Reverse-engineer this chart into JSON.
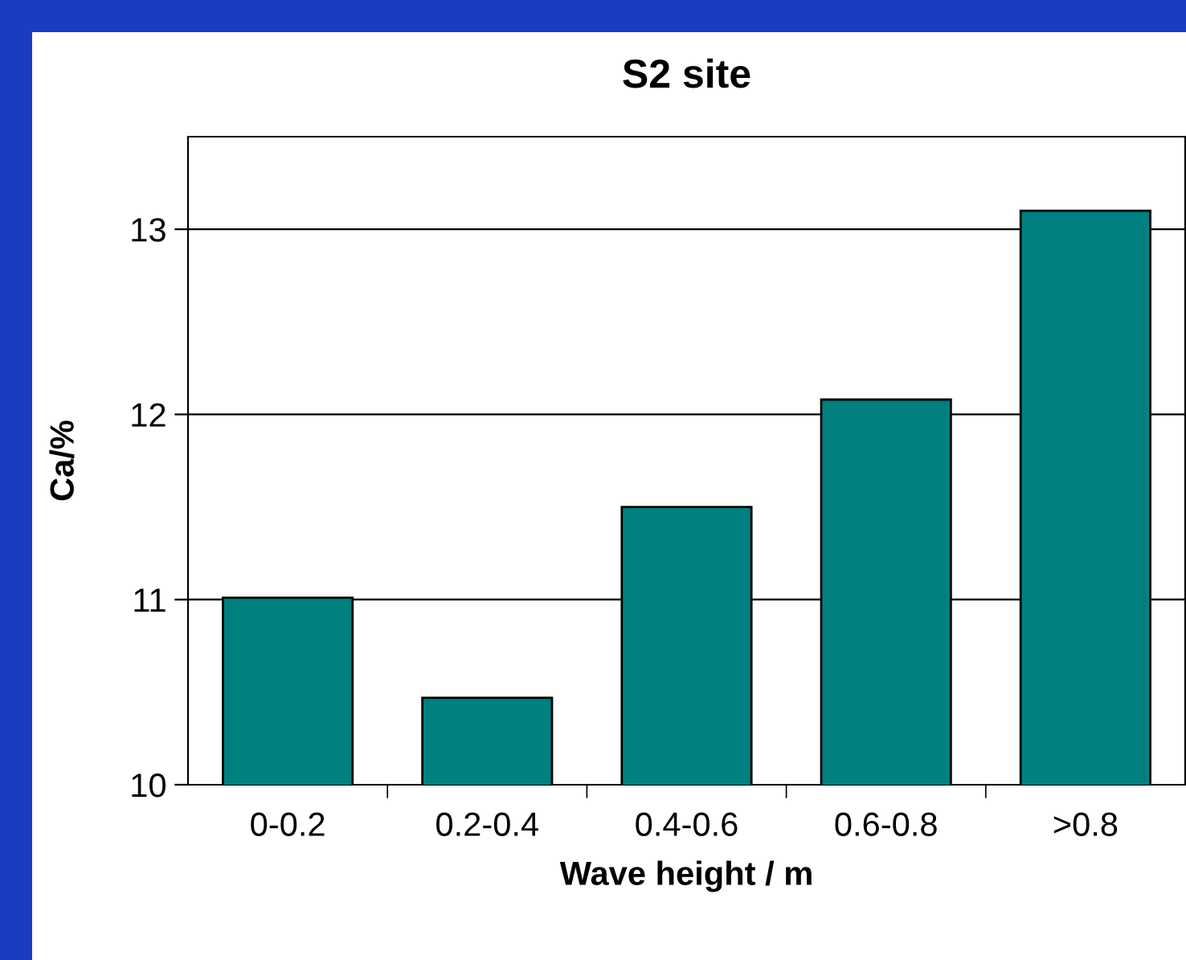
{
  "chart_data": {
    "type": "bar",
    "title": "S2 site",
    "xlabel": "Wave height / m",
    "ylabel": "Ca/%",
    "categories": [
      "0-0.2",
      "0.2-0.4",
      "0.4-0.6",
      "0.6-0.8",
      ">0.8"
    ],
    "values": [
      11.01,
      10.47,
      11.5,
      12.08,
      13.1
    ],
    "color": "#008080",
    "ylim": [
      10,
      13.5
    ],
    "yticks": [
      10,
      11,
      12,
      13
    ],
    "grid": "y"
  }
}
